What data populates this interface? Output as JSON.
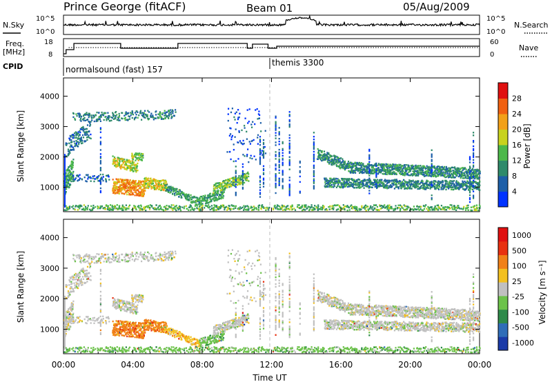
{
  "header": {
    "station": "Prince George (fitACF)",
    "beam": "Beam 01",
    "date": "05/Aug/2009"
  },
  "panels": {
    "nsky_label": "N.Sky",
    "nsky_ticks": [
      "10^5",
      "10^0"
    ],
    "nsearch_label": "N.Search",
    "nsearch_ticks": [
      "10^5",
      "10^0"
    ],
    "freq_label_1": "Freq.",
    "freq_label_2": "[MHz]",
    "freq_ticks": [
      "18",
      "8"
    ],
    "nave_label": "Nave",
    "nave_ticks": [
      "60",
      "0"
    ],
    "cpid_label": "CPID",
    "cpid_1": "normalsound (fast) 157",
    "cpid_2": "themis 3300"
  },
  "chart_data": [
    {
      "type": "heatmap",
      "name": "power",
      "ylabel": "Slant Range [km]",
      "xlabel": "",
      "yticks": [
        "1000",
        "2000",
        "3000",
        "4000"
      ],
      "ylim": [
        200,
        4600
      ],
      "xlim": [
        0,
        24
      ],
      "colorbar_label": "Power [dB]",
      "colorbar_ticks": [
        "4",
        "8",
        "12",
        "16",
        "20",
        "24",
        "28"
      ],
      "colorbar_colors": [
        "#0033ff",
        "#1d5fa8",
        "#2e8a6a",
        "#4cb84a",
        "#c8d21e",
        "#f2a018",
        "#f06010",
        "#e01010"
      ]
    },
    {
      "type": "heatmap",
      "name": "velocity",
      "ylabel": "Slant Range [km]",
      "xlabel": "Time UT",
      "yticks": [
        "1000",
        "2000",
        "3000",
        "4000"
      ],
      "xticks": [
        "00:00",
        "04:00",
        "08:00",
        "12:00",
        "16:00",
        "20:00",
        "00:00"
      ],
      "ylim": [
        200,
        4600
      ],
      "xlim": [
        0,
        24
      ],
      "colorbar_label": "Velocity [m s⁻¹]",
      "colorbar_ticks": [
        "1000",
        "500",
        "100",
        "25",
        "-25",
        "-100",
        "-500",
        "-1000"
      ],
      "colorbar_colors": [
        "#1a3aa8",
        "#2f6db8",
        "#2e8a4a",
        "#6cc24a",
        "#c0c0c0",
        "#f2c020",
        "#f08018",
        "#e83010",
        "#e01010"
      ]
    }
  ]
}
